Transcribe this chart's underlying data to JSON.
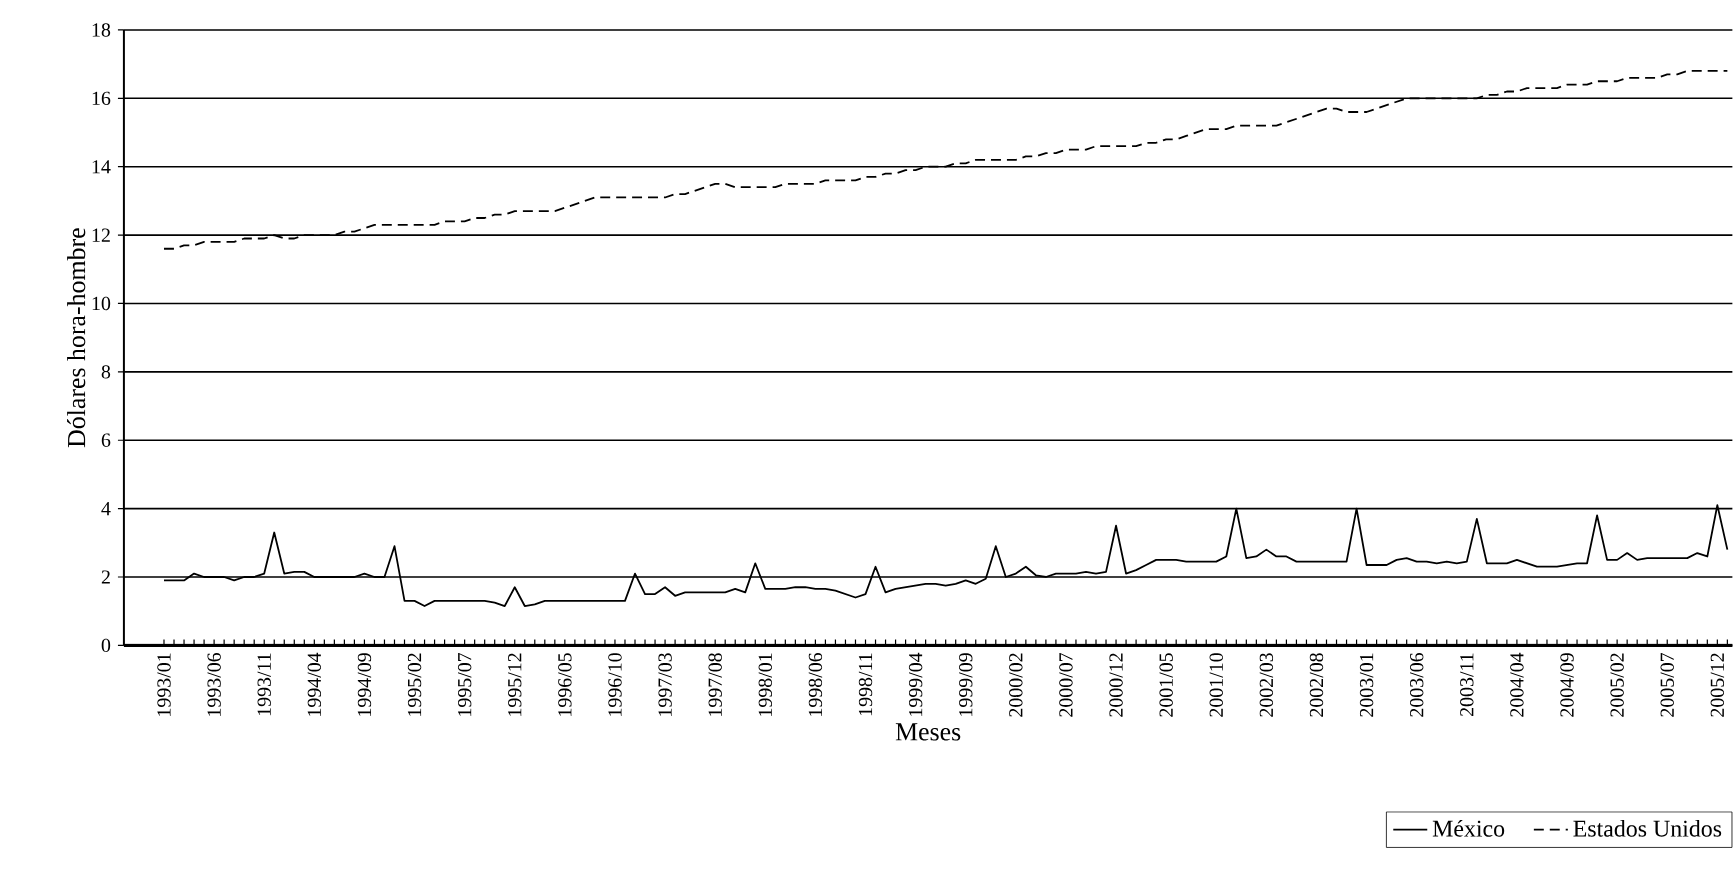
{
  "chart_data": {
    "type": "line",
    "xlabel": "Meses",
    "ylabel": "Dólares hora-hombre",
    "categories": [
      "1993/01",
      null,
      null,
      null,
      null,
      "1993/06",
      null,
      null,
      null,
      null,
      "1993/11",
      null,
      null,
      null,
      null,
      "1994/04",
      null,
      null,
      null,
      null,
      "1994/09",
      null,
      null,
      null,
      null,
      "1995/02",
      null,
      null,
      null,
      null,
      "1995/07",
      null,
      null,
      null,
      null,
      "1995/12",
      null,
      null,
      null,
      null,
      "1996/05",
      null,
      null,
      null,
      null,
      "1996/10",
      null,
      null,
      null,
      null,
      "1997/03",
      null,
      null,
      null,
      null,
      "1997/08",
      null,
      null,
      null,
      null,
      "1998/01",
      null,
      null,
      null,
      null,
      "1998/06",
      null,
      null,
      null,
      null,
      "1998/11",
      null,
      null,
      null,
      null,
      "1999/04",
      null,
      null,
      null,
      null,
      "1999/09",
      null,
      null,
      null,
      null,
      "2000/02",
      null,
      null,
      null,
      null,
      "2000/07",
      null,
      null,
      null,
      null,
      "2000/12",
      null,
      null,
      null,
      null,
      "2001/05",
      null,
      null,
      null,
      null,
      "2001/10",
      null,
      null,
      null,
      null,
      "2002/03",
      null,
      null,
      null,
      null,
      "2002/08",
      null,
      null,
      null,
      null,
      "2003/01",
      null,
      null,
      null,
      null,
      "2003/06",
      null,
      null,
      null,
      null,
      "2003/11",
      null,
      null,
      null,
      null,
      "2004/04",
      null,
      null,
      null,
      null,
      "2004/09",
      null,
      null,
      null,
      null,
      "2005/02",
      null,
      null,
      null,
      null,
      "2005/07",
      null,
      null,
      null,
      null,
      "2005/12",
      null
    ],
    "series": [
      {
        "name": "México",
        "color": "#000000",
        "line_style": "solid",
        "values": [
          1.9,
          1.9,
          1.9,
          2.1,
          2.0,
          2.0,
          2.0,
          1.9,
          2.0,
          2.0,
          2.1,
          3.3,
          2.1,
          2.15,
          2.15,
          2.0,
          2.0,
          2.0,
          2.0,
          2.0,
          2.1,
          2.0,
          2.0,
          2.9,
          1.3,
          1.3,
          1.15,
          1.3,
          1.3,
          1.3,
          1.3,
          1.3,
          1.3,
          1.25,
          1.15,
          1.7,
          1.15,
          1.2,
          1.3,
          1.3,
          1.3,
          1.3,
          1.3,
          1.3,
          1.3,
          1.3,
          1.3,
          2.1,
          1.5,
          1.5,
          1.7,
          1.45,
          1.55,
          1.55,
          1.55,
          1.55,
          1.55,
          1.65,
          1.55,
          2.4,
          1.65,
          1.65,
          1.65,
          1.7,
          1.7,
          1.65,
          1.65,
          1.6,
          1.5,
          1.4,
          1.5,
          2.3,
          1.55,
          1.65,
          1.7,
          1.75,
          1.8,
          1.8,
          1.75,
          1.8,
          1.9,
          1.8,
          1.95,
          2.9,
          2.0,
          2.1,
          2.3,
          2.05,
          2.0,
          2.1,
          2.1,
          2.1,
          2.15,
          2.1,
          2.15,
          3.5,
          2.1,
          2.2,
          2.35,
          2.5,
          2.5,
          2.5,
          2.45,
          2.45,
          2.45,
          2.45,
          2.6,
          4.0,
          2.55,
          2.6,
          2.8,
          2.6,
          2.6,
          2.45,
          2.45,
          2.45,
          2.45,
          2.45,
          2.45,
          4.0,
          2.35,
          2.35,
          2.35,
          2.5,
          2.55,
          2.45,
          2.45,
          2.4,
          2.45,
          2.4,
          2.45,
          3.7,
          2.4,
          2.4,
          2.4,
          2.5,
          2.4,
          2.3,
          2.3,
          2.3,
          2.35,
          2.4,
          2.4,
          3.8,
          2.5,
          2.5,
          2.7,
          2.5,
          2.55,
          2.55,
          2.55,
          2.55,
          2.55,
          2.7,
          2.6,
          4.1,
          2.8
        ]
      },
      {
        "name": "Estados Unidos",
        "color": "#000000",
        "line_style": "dashed",
        "values": [
          11.6,
          11.6,
          11.7,
          11.7,
          11.8,
          11.8,
          11.8,
          11.8,
          11.9,
          11.9,
          11.9,
          12.0,
          11.9,
          11.9,
          12.0,
          12.0,
          12.0,
          12.0,
          12.1,
          12.1,
          12.2,
          12.3,
          12.3,
          12.3,
          12.3,
          12.3,
          12.3,
          12.3,
          12.4,
          12.4,
          12.4,
          12.5,
          12.5,
          12.6,
          12.6,
          12.7,
          12.7,
          12.7,
          12.7,
          12.7,
          12.8,
          12.9,
          13.0,
          13.1,
          13.1,
          13.1,
          13.1,
          13.1,
          13.1,
          13.1,
          13.1,
          13.2,
          13.2,
          13.3,
          13.4,
          13.5,
          13.5,
          13.4,
          13.4,
          13.4,
          13.4,
          13.4,
          13.5,
          13.5,
          13.5,
          13.5,
          13.6,
          13.6,
          13.6,
          13.6,
          13.7,
          13.7,
          13.8,
          13.8,
          13.9,
          13.9,
          14.0,
          14.0,
          14.0,
          14.1,
          14.1,
          14.2,
          14.2,
          14.2,
          14.2,
          14.2,
          14.3,
          14.3,
          14.4,
          14.4,
          14.5,
          14.5,
          14.5,
          14.6,
          14.6,
          14.6,
          14.6,
          14.6,
          14.7,
          14.7,
          14.8,
          14.8,
          14.9,
          15.0,
          15.1,
          15.1,
          15.1,
          15.2,
          15.2,
          15.2,
          15.2,
          15.2,
          15.3,
          15.4,
          15.5,
          15.6,
          15.7,
          15.7,
          15.6,
          15.6,
          15.6,
          15.7,
          15.8,
          15.9,
          16.0,
          16.0,
          16.0,
          16.0,
          16.0,
          16.0,
          16.0,
          16.0,
          16.1,
          16.1,
          16.2,
          16.2,
          16.3,
          16.3,
          16.3,
          16.3,
          16.4,
          16.4,
          16.4,
          16.5,
          16.5,
          16.5,
          16.6,
          16.6,
          16.6,
          16.6,
          16.7,
          16.7,
          16.8,
          16.8,
          16.8,
          16.8,
          16.8
        ]
      }
    ],
    "ylim": [
      0,
      18
    ],
    "yticks": [
      0,
      2,
      4,
      6,
      8,
      10,
      12,
      14,
      16,
      18
    ],
    "grid": "y",
    "legend": "bottom right",
    "marker": "none"
  }
}
